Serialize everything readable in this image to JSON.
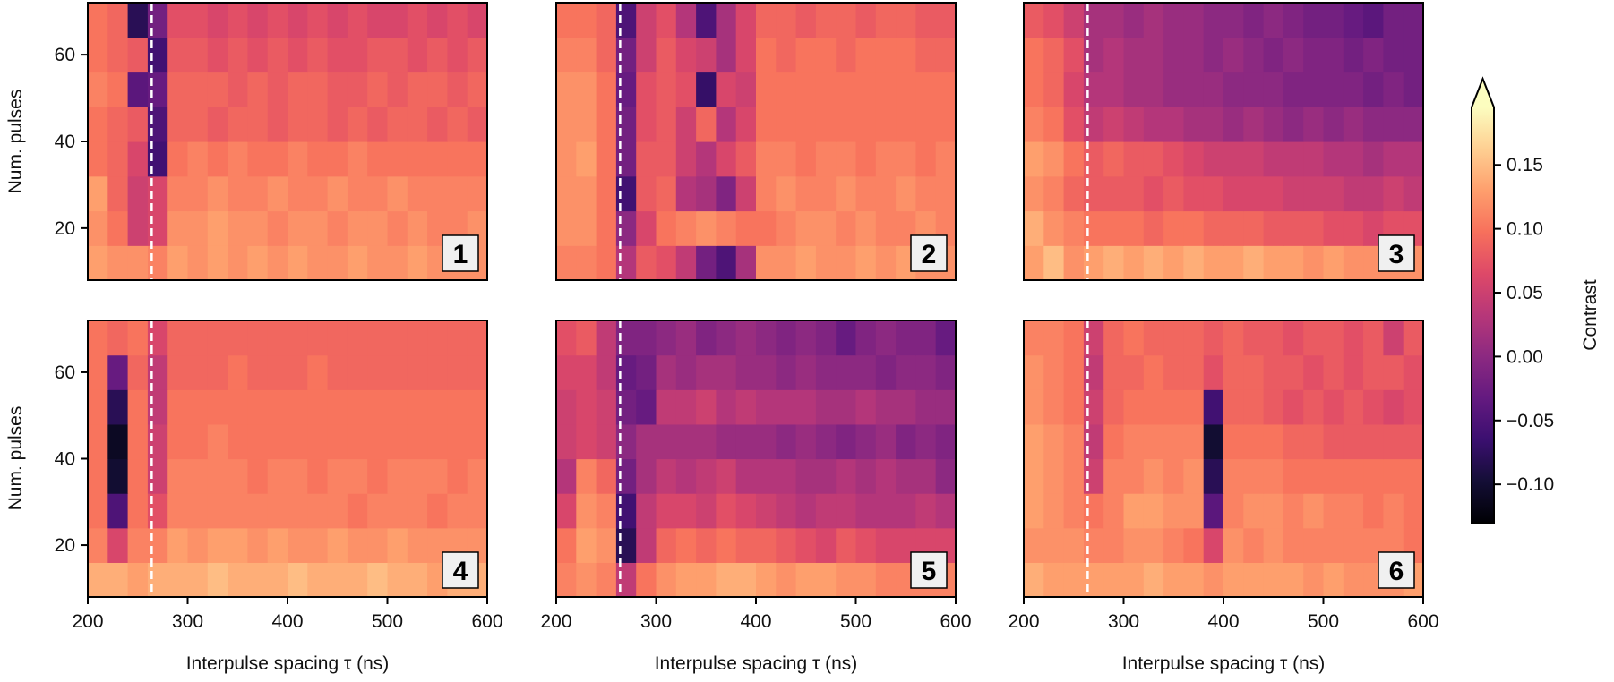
{
  "figure": {
    "ylabel": "Num. pulses",
    "xlabel": "Interpulse spacing τ (ns)",
    "colorbar": {
      "label": "Contrast",
      "colormap": "magma",
      "range": [
        -0.13,
        0.195
      ],
      "extend": "max",
      "ticks": [
        0.15,
        0.1,
        0.05,
        0.0,
        -0.05,
        -0.1
      ],
      "tick_labels": [
        "0.15",
        "0.10",
        "0.05",
        "0.00",
        "−0.05",
        "−0.10"
      ]
    },
    "x_ticks": [
      200,
      300,
      400,
      500,
      600
    ],
    "x_tick_labels": [
      "200",
      "300",
      "400",
      "500",
      "600"
    ],
    "y_ticks": [
      20,
      40,
      60
    ],
    "y_tick_labels": [
      "20",
      "40",
      "60"
    ],
    "reference_line_color": "#ffffff",
    "panel_label_bg": "#f0f0f0"
  },
  "chart_data": [
    {
      "type": "heatmap",
      "panel_label": "1",
      "xlim": [
        200,
        600
      ],
      "ylim": [
        8,
        72
      ],
      "reference_line_x": 264,
      "rows_num_pulses": [
        12,
        20,
        28,
        36,
        44,
        52,
        60,
        68
      ],
      "z": [
        [
          0.13,
          0.12,
          0.12,
          0.11,
          0.13,
          0.12,
          0.13,
          0.12,
          0.13,
          0.12,
          0.13,
          0.12,
          0.12,
          0.13,
          0.12,
          0.12,
          0.13,
          0.12,
          0.12,
          0.12
        ],
        [
          0.12,
          0.1,
          0.05,
          0.06,
          0.12,
          0.12,
          0.13,
          0.12,
          0.12,
          0.11,
          0.12,
          0.12,
          0.11,
          0.12,
          0.12,
          0.11,
          0.12,
          0.11,
          0.11,
          0.12
        ],
        [
          0.13,
          0.09,
          0.05,
          0.06,
          0.11,
          0.11,
          0.12,
          0.11,
          0.11,
          0.12,
          0.11,
          0.11,
          0.12,
          0.11,
          0.11,
          0.12,
          0.11,
          0.11,
          0.11,
          0.11
        ],
        [
          0.1,
          0.09,
          0.06,
          -0.06,
          0.1,
          0.11,
          0.1,
          0.11,
          0.1,
          0.1,
          0.11,
          0.1,
          0.1,
          0.11,
          0.1,
          0.1,
          0.1,
          0.1,
          0.1,
          0.1
        ],
        [
          0.1,
          0.09,
          0.08,
          -0.05,
          0.09,
          0.09,
          0.08,
          0.09,
          0.09,
          0.08,
          0.09,
          0.09,
          0.08,
          0.09,
          0.08,
          0.09,
          0.09,
          0.08,
          0.09,
          0.08
        ],
        [
          0.11,
          0.1,
          -0.04,
          -0.03,
          0.09,
          0.09,
          0.09,
          0.08,
          0.09,
          0.08,
          0.09,
          0.09,
          0.08,
          0.08,
          0.09,
          0.08,
          0.09,
          0.09,
          0.08,
          0.09
        ],
        [
          0.1,
          0.09,
          0.08,
          -0.06,
          0.08,
          0.08,
          0.07,
          0.08,
          0.07,
          0.08,
          0.07,
          0.08,
          0.07,
          0.07,
          0.08,
          0.08,
          0.07,
          0.08,
          0.07,
          0.08
        ],
        [
          0.1,
          0.09,
          -0.08,
          -0.02,
          0.07,
          0.07,
          0.06,
          0.07,
          0.06,
          0.07,
          0.06,
          0.07,
          0.06,
          0.07,
          0.06,
          0.06,
          0.07,
          0.06,
          0.07,
          0.06
        ]
      ]
    },
    {
      "type": "heatmap",
      "panel_label": "2",
      "xlim": [
        200,
        600
      ],
      "ylim": [
        8,
        72
      ],
      "reference_line_x": 264,
      "rows_num_pulses": [
        12,
        20,
        28,
        36,
        44,
        52,
        60,
        68
      ],
      "z": [
        [
          0.11,
          0.11,
          0.1,
          0.03,
          0.08,
          0.07,
          0.04,
          -0.02,
          -0.05,
          0.02,
          0.12,
          0.12,
          0.13,
          0.12,
          0.12,
          0.13,
          0.12,
          0.13,
          0.12,
          0.12
        ],
        [
          0.12,
          0.12,
          0.1,
          0.0,
          0.06,
          0.1,
          0.11,
          0.12,
          0.11,
          0.1,
          0.1,
          0.11,
          0.12,
          0.12,
          0.11,
          0.12,
          0.11,
          0.11,
          0.12,
          0.11
        ],
        [
          0.12,
          0.12,
          0.1,
          -0.06,
          0.08,
          0.09,
          0.03,
          0.02,
          -0.01,
          0.05,
          0.11,
          0.12,
          0.11,
          0.11,
          0.12,
          0.11,
          0.11,
          0.12,
          0.11,
          0.11
        ],
        [
          0.12,
          0.13,
          0.1,
          -0.02,
          0.08,
          0.08,
          0.05,
          0.03,
          0.06,
          0.08,
          0.11,
          0.11,
          0.1,
          0.11,
          0.11,
          0.1,
          0.11,
          0.11,
          0.1,
          0.11
        ],
        [
          0.12,
          0.12,
          0.1,
          -0.02,
          0.07,
          0.08,
          0.05,
          0.09,
          0.03,
          0.06,
          0.1,
          0.1,
          0.1,
          0.1,
          0.1,
          0.1,
          0.1,
          0.1,
          0.1,
          0.1
        ],
        [
          0.12,
          0.12,
          0.1,
          -0.03,
          0.07,
          0.08,
          0.07,
          -0.07,
          0.06,
          0.05,
          0.1,
          0.1,
          0.1,
          0.1,
          0.1,
          0.1,
          0.1,
          0.1,
          0.1,
          0.1
        ],
        [
          0.11,
          0.11,
          0.09,
          -0.02,
          0.05,
          0.08,
          0.06,
          0.05,
          0.02,
          0.06,
          0.1,
          0.09,
          0.1,
          0.1,
          0.09,
          0.1,
          0.1,
          0.1,
          0.09,
          0.09
        ],
        [
          0.1,
          0.1,
          0.09,
          -0.05,
          0.05,
          0.07,
          0.03,
          -0.05,
          0.02,
          0.06,
          0.09,
          0.09,
          0.08,
          0.09,
          0.09,
          0.08,
          0.09,
          0.09,
          0.08,
          0.08
        ]
      ]
    },
    {
      "type": "heatmap",
      "panel_label": "3",
      "xlim": [
        200,
        600
      ],
      "ylim": [
        8,
        72
      ],
      "reference_line_x": 264,
      "rows_num_pulses": [
        12,
        20,
        28,
        36,
        44,
        52,
        60,
        68
      ],
      "z": [
        [
          0.13,
          0.15,
          0.12,
          0.13,
          0.14,
          0.13,
          0.14,
          0.13,
          0.14,
          0.13,
          0.13,
          0.14,
          0.13,
          0.13,
          0.12,
          0.13,
          0.12,
          0.12,
          0.12,
          0.12
        ],
        [
          0.14,
          0.12,
          0.11,
          0.1,
          0.1,
          0.1,
          0.09,
          0.1,
          0.1,
          0.09,
          0.09,
          0.09,
          0.08,
          0.08,
          0.08,
          0.07,
          0.07,
          0.06,
          0.07,
          0.07
        ],
        [
          0.12,
          0.11,
          0.09,
          0.08,
          0.08,
          0.08,
          0.07,
          0.08,
          0.07,
          0.07,
          0.06,
          0.06,
          0.06,
          0.05,
          0.05,
          0.05,
          0.04,
          0.04,
          0.05,
          0.04
        ],
        [
          0.13,
          0.12,
          0.1,
          0.08,
          0.09,
          0.08,
          0.08,
          0.07,
          0.06,
          0.05,
          0.05,
          0.05,
          0.04,
          0.04,
          0.04,
          0.03,
          0.03,
          0.02,
          0.03,
          0.03
        ],
        [
          0.11,
          0.1,
          0.07,
          0.04,
          0.05,
          0.04,
          0.03,
          0.03,
          0.02,
          0.02,
          0.01,
          0.02,
          0.01,
          0.0,
          0.01,
          0.0,
          0.01,
          0.0,
          0.0,
          0.0
        ],
        [
          0.1,
          0.09,
          0.06,
          0.03,
          0.03,
          0.02,
          0.02,
          0.01,
          0.01,
          0.01,
          0.0,
          0.0,
          0.0,
          -0.01,
          -0.01,
          -0.01,
          -0.01,
          -0.02,
          -0.01,
          -0.02
        ],
        [
          0.1,
          0.09,
          0.07,
          0.02,
          0.03,
          0.02,
          0.02,
          0.01,
          0.01,
          0.0,
          0.01,
          0.0,
          -0.01,
          0.0,
          -0.01,
          -0.01,
          -0.02,
          -0.01,
          -0.02,
          -0.02
        ],
        [
          0.08,
          0.07,
          0.05,
          0.02,
          0.02,
          0.01,
          0.02,
          0.01,
          0.01,
          0.0,
          0.0,
          -0.01,
          0.0,
          -0.01,
          -0.02,
          -0.02,
          -0.03,
          -0.04,
          -0.02,
          -0.02
        ]
      ]
    },
    {
      "type": "heatmap",
      "panel_label": "4",
      "xlim": [
        200,
        600
      ],
      "ylim": [
        8,
        72
      ],
      "reference_line_x": 264,
      "rows_num_pulses": [
        12,
        20,
        28,
        36,
        44,
        52,
        60,
        68
      ],
      "z": [
        [
          0.14,
          0.14,
          0.13,
          0.14,
          0.14,
          0.14,
          0.15,
          0.14,
          0.14,
          0.14,
          0.15,
          0.14,
          0.14,
          0.14,
          0.15,
          0.14,
          0.14,
          0.13,
          0.14,
          0.14
        ],
        [
          0.11,
          0.06,
          0.11,
          0.11,
          0.13,
          0.12,
          0.13,
          0.13,
          0.12,
          0.13,
          0.12,
          0.12,
          0.13,
          0.12,
          0.12,
          0.13,
          0.12,
          0.12,
          0.12,
          0.12
        ],
        [
          0.1,
          -0.05,
          0.1,
          0.07,
          0.11,
          0.11,
          0.11,
          0.11,
          0.11,
          0.11,
          0.11,
          0.11,
          0.11,
          0.1,
          0.11,
          0.11,
          0.11,
          0.1,
          0.11,
          0.11
        ],
        [
          0.1,
          -0.1,
          0.1,
          0.05,
          0.11,
          0.11,
          0.11,
          0.11,
          0.1,
          0.11,
          0.11,
          0.1,
          0.11,
          0.11,
          0.1,
          0.11,
          0.11,
          0.11,
          0.1,
          0.11
        ],
        [
          0.1,
          -0.11,
          0.1,
          0.05,
          0.1,
          0.1,
          0.11,
          0.1,
          0.1,
          0.1,
          0.1,
          0.1,
          0.1,
          0.1,
          0.1,
          0.1,
          0.1,
          0.1,
          0.1,
          0.1
        ],
        [
          0.1,
          -0.08,
          0.1,
          0.04,
          0.1,
          0.1,
          0.1,
          0.1,
          0.1,
          0.1,
          0.1,
          0.1,
          0.1,
          0.1,
          0.1,
          0.1,
          0.1,
          0.1,
          0.1,
          0.1
        ],
        [
          0.1,
          -0.03,
          0.09,
          0.04,
          0.09,
          0.09,
          0.09,
          0.1,
          0.09,
          0.09,
          0.09,
          0.1,
          0.09,
          0.09,
          0.09,
          0.09,
          0.09,
          0.09,
          0.09,
          0.09
        ],
        [
          0.1,
          0.09,
          0.1,
          0.06,
          0.09,
          0.09,
          0.09,
          0.09,
          0.09,
          0.09,
          0.09,
          0.09,
          0.09,
          0.09,
          0.09,
          0.09,
          0.09,
          0.09,
          0.09,
          0.09
        ]
      ]
    },
    {
      "type": "heatmap",
      "panel_label": "5",
      "xlim": [
        200,
        600
      ],
      "ylim": [
        8,
        72
      ],
      "reference_line_x": 264,
      "rows_num_pulses": [
        12,
        20,
        28,
        36,
        44,
        52,
        60,
        68
      ],
      "z": [
        [
          0.11,
          0.12,
          0.11,
          0.04,
          0.1,
          0.12,
          0.13,
          0.13,
          0.14,
          0.14,
          0.13,
          0.12,
          0.13,
          0.13,
          0.12,
          0.12,
          0.11,
          0.11,
          0.11,
          0.11
        ],
        [
          0.1,
          0.13,
          0.12,
          -0.08,
          0.04,
          0.09,
          0.1,
          0.09,
          0.1,
          0.09,
          0.09,
          0.08,
          0.07,
          0.06,
          0.08,
          0.07,
          0.06,
          0.06,
          0.06,
          0.06
        ],
        [
          0.06,
          0.12,
          0.11,
          -0.06,
          0.04,
          0.06,
          0.06,
          0.05,
          0.07,
          0.06,
          0.05,
          0.04,
          0.03,
          0.04,
          0.04,
          0.03,
          0.03,
          0.03,
          0.04,
          0.03
        ],
        [
          0.03,
          0.11,
          0.09,
          -0.02,
          0.02,
          0.04,
          0.03,
          0.04,
          0.05,
          0.03,
          0.03,
          0.03,
          0.02,
          0.02,
          0.03,
          0.02,
          0.03,
          0.02,
          0.02,
          0.0
        ],
        [
          0.05,
          0.06,
          0.05,
          0.0,
          0.02,
          0.02,
          0.02,
          0.02,
          0.01,
          0.01,
          0.01,
          0.0,
          0.01,
          0.0,
          -0.01,
          0.0,
          0.01,
          -0.01,
          0.0,
          -0.01
        ],
        [
          0.05,
          0.06,
          0.05,
          -0.02,
          -0.03,
          0.04,
          0.04,
          0.05,
          0.03,
          0.04,
          0.03,
          0.03,
          0.03,
          0.02,
          0.02,
          0.03,
          0.02,
          0.02,
          0.01,
          0.01
        ],
        [
          0.06,
          0.06,
          0.04,
          -0.03,
          -0.02,
          0.02,
          0.01,
          0.02,
          0.02,
          0.01,
          0.01,
          0.0,
          0.01,
          0.0,
          0.0,
          0.0,
          -0.01,
          0.0,
          0.0,
          -0.01
        ],
        [
          0.07,
          0.08,
          0.04,
          -0.01,
          -0.01,
          0.0,
          0.01,
          -0.01,
          0.0,
          0.01,
          0.0,
          -0.01,
          0.0,
          -0.01,
          -0.03,
          -0.01,
          0.0,
          -0.01,
          -0.01,
          -0.03
        ]
      ]
    },
    {
      "type": "heatmap",
      "panel_label": "6",
      "xlim": [
        200,
        600
      ],
      "ylim": [
        8,
        72
      ],
      "reference_line_x": 264,
      "rows_num_pulses": [
        12,
        20,
        28,
        36,
        44,
        52,
        60,
        68
      ],
      "z": [
        [
          0.14,
          0.13,
          0.13,
          0.13,
          0.13,
          0.13,
          0.14,
          0.13,
          0.13,
          0.12,
          0.13,
          0.13,
          0.13,
          0.13,
          0.12,
          0.13,
          0.12,
          0.12,
          0.12,
          0.13
        ],
        [
          0.12,
          0.12,
          0.12,
          0.11,
          0.11,
          0.12,
          0.12,
          0.11,
          0.1,
          0.06,
          0.12,
          0.11,
          0.12,
          0.11,
          0.11,
          0.11,
          0.11,
          0.11,
          0.11,
          0.1
        ],
        [
          0.13,
          0.12,
          0.11,
          0.1,
          0.11,
          0.13,
          0.13,
          0.12,
          0.12,
          -0.04,
          0.11,
          0.12,
          0.12,
          0.11,
          0.12,
          0.11,
          0.11,
          0.1,
          0.11,
          0.1
        ],
        [
          0.13,
          0.12,
          0.11,
          0.05,
          0.11,
          0.11,
          0.12,
          0.11,
          0.12,
          -0.08,
          0.11,
          0.11,
          0.11,
          0.1,
          0.1,
          0.1,
          0.1,
          0.1,
          0.1,
          0.1
        ],
        [
          0.13,
          0.12,
          0.11,
          0.04,
          0.1,
          0.11,
          0.11,
          0.11,
          0.11,
          -0.1,
          0.1,
          0.1,
          0.1,
          0.09,
          0.09,
          0.08,
          0.08,
          0.08,
          0.08,
          0.08
        ],
        [
          0.12,
          0.11,
          0.1,
          0.05,
          0.09,
          0.1,
          0.1,
          0.1,
          0.1,
          -0.06,
          0.09,
          0.09,
          0.08,
          0.07,
          0.08,
          0.07,
          0.08,
          0.07,
          0.06,
          0.07
        ],
        [
          0.12,
          0.11,
          0.1,
          0.04,
          0.09,
          0.09,
          0.1,
          0.09,
          0.09,
          0.07,
          0.09,
          0.09,
          0.08,
          0.08,
          0.07,
          0.08,
          0.07,
          0.08,
          0.08,
          0.07
        ],
        [
          0.11,
          0.11,
          0.1,
          0.05,
          0.09,
          0.1,
          0.09,
          0.09,
          0.09,
          0.08,
          0.09,
          0.08,
          0.08,
          0.07,
          0.08,
          0.08,
          0.07,
          0.08,
          0.05,
          0.08
        ]
      ]
    }
  ]
}
